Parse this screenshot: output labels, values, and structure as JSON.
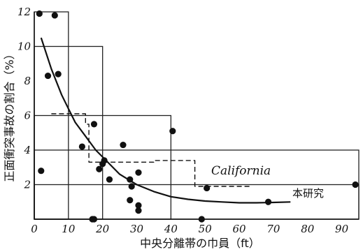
{
  "chart_data": {
    "type": "scatter",
    "xlabel": "中央分離帯の巾員（ft）",
    "ylabel": "正面衝突事故の割合（%）",
    "xlim": [
      0,
      95
    ],
    "ylim": [
      0,
      12
    ],
    "x_ticks": [
      "0",
      "10",
      "20",
      "30",
      "40",
      "50",
      "60",
      "70",
      "80",
      "90"
    ],
    "y_ticks": [
      "2",
      "4",
      "6",
      "8",
      "10",
      "12"
    ],
    "grid": false,
    "points": [
      [
        1.5,
        11.9
      ],
      [
        6,
        11.8
      ],
      [
        4,
        8.3
      ],
      [
        7,
        8.4
      ],
      [
        2,
        2.8
      ],
      [
        14,
        4.2
      ],
      [
        17.5,
        5.5
      ],
      [
        19,
        2.9
      ],
      [
        20,
        3.2
      ],
      [
        20.5,
        3.4
      ],
      [
        22,
        2.3
      ],
      [
        26,
        4.3
      ],
      [
        28,
        2.3
      ],
      [
        28,
        1.1
      ],
      [
        28.5,
        1.9
      ],
      [
        30.5,
        2.7
      ],
      [
        30.5,
        0.8
      ],
      [
        30.5,
        0.5
      ],
      [
        17,
        0
      ],
      [
        17.5,
        0
      ],
      [
        40.5,
        5.1
      ],
      [
        49,
        0
      ],
      [
        50.5,
        1.8
      ],
      [
        68.5,
        1.0
      ],
      [
        94,
        2.0
      ]
    ],
    "series": [
      {
        "name": "本研究",
        "style": "solid curve",
        "x": [
          2,
          5,
          8,
          10,
          12,
          15,
          18,
          20,
          25,
          30,
          35,
          40,
          45,
          50,
          55,
          60,
          65,
          70,
          75
        ],
        "y": [
          10.5,
          8.7,
          7.2,
          6.4,
          5.6,
          4.8,
          4.0,
          3.6,
          2.6,
          2.0,
          1.6,
          1.3,
          1.15,
          1.05,
          1.0,
          0.95,
          0.95,
          0.97,
          1.0
        ]
      },
      {
        "name": "California",
        "style": "dashed step",
        "x": [
          5,
          15,
          15,
          16,
          16,
          35,
          35,
          47,
          47,
          63
        ],
        "y": [
          6.1,
          6.1,
          5.5,
          5.5,
          3.3,
          3.3,
          3.4,
          3.4,
          1.9,
          1.9
        ]
      }
    ],
    "frames": [
      {
        "x0": 0,
        "x1": 10,
        "y0": 0,
        "y1": 12
      },
      {
        "x0": 0,
        "x1": 20,
        "y0": 0,
        "y1": 10
      },
      {
        "x0": 0,
        "x1": 40,
        "y0": 0,
        "y1": 6
      },
      {
        "x0": 0,
        "x1": 95,
        "y0": 0,
        "y1": 4
      },
      {
        "x0": 0,
        "x1": 95,
        "y0": 0,
        "y1": 2
      }
    ]
  }
}
